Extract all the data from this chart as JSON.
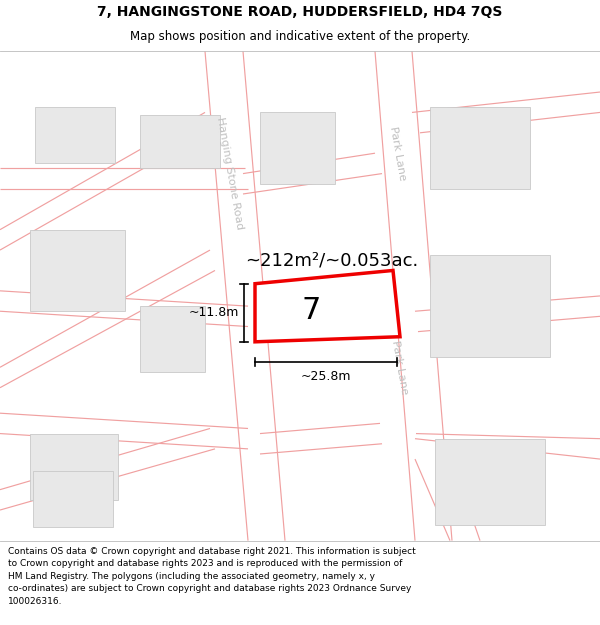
{
  "title_line1": "7, HANGINGSTONE ROAD, HUDDERSFIELD, HD4 7QS",
  "title_line2": "Map shows position and indicative extent of the property.",
  "footer_text": "Contains OS data © Crown copyright and database right 2021. This information is subject\nto Crown copyright and database rights 2023 and is reproduced with the permission of\nHM Land Registry. The polygons (including the associated geometry, namely x, y\nco-ordinates) are subject to Crown copyright and database rights 2023 Ordnance Survey\n100026316.",
  "area_label": "~212m²/~0.053ac.",
  "property_number": "7",
  "width_label": "~25.8m",
  "height_label": "~11.8m",
  "road_label_hanging": "Hanging Stone Road",
  "road_label_park1": "Park Lane",
  "road_label_park2": "Park Lane",
  "map_bg": "#ffffff",
  "building_color": "#e8e8e8",
  "building_edge": "#c8c8c8",
  "road_line_color": "#f0a0a0",
  "property_fill": "#ffffff",
  "property_edge": "#ee0000",
  "dim_color": "#000000",
  "road_label_color": "#c0c0c0",
  "title_fontsize": 10,
  "subtitle_fontsize": 8.5,
  "footer_fontsize": 6.5,
  "area_fontsize": 13,
  "number_fontsize": 22,
  "dim_fontsize": 9,
  "road_fontsize": 8,
  "title_bold": true
}
